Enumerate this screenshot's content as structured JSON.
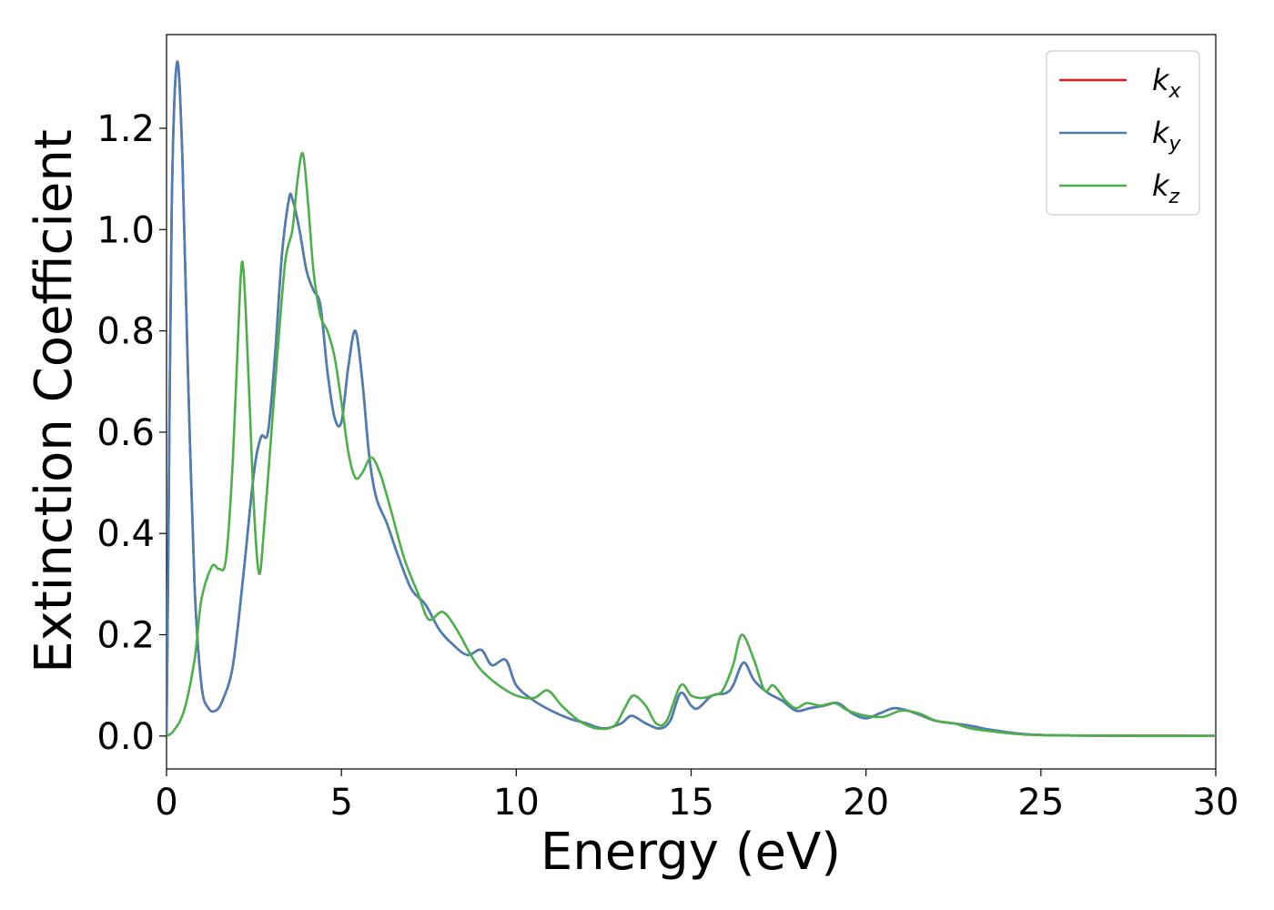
{
  "chart_data": {
    "type": "line",
    "title": "",
    "xlabel": "Energy (eV)",
    "ylabel": "Extinction Coefficient",
    "xlim": [
      0,
      30
    ],
    "ylim": [
      -0.065,
      1.385
    ],
    "xticks": [
      0,
      5,
      10,
      15,
      20,
      25,
      30
    ],
    "xtick_labels": [
      "0",
      "5",
      "10",
      "15",
      "20",
      "25",
      "30"
    ],
    "yticks": [
      0.0,
      0.2,
      0.4,
      0.6,
      0.8,
      1.0,
      1.2
    ],
    "ytick_labels": [
      "0.0",
      "0.2",
      "0.4",
      "0.6",
      "0.8",
      "1.0",
      "1.2"
    ],
    "grid": false,
    "legend_position": "top-right",
    "series": [
      {
        "name": "k_x",
        "label_main": "k",
        "label_sub": "x",
        "color": "#e41a1c",
        "x": [
          0,
          0.05,
          0.15,
          0.3,
          0.45,
          0.6,
          0.8,
          1.0,
          1.2,
          1.4,
          1.6,
          1.9,
          2.2,
          2.5,
          2.7,
          2.9,
          3.1,
          3.3,
          3.5,
          3.6,
          3.8,
          4.0,
          4.2,
          4.4,
          4.6,
          4.8,
          5.0,
          5.2,
          5.4,
          5.6,
          5.8,
          6.0,
          6.3,
          6.6,
          7.0,
          7.4,
          7.8,
          8.2,
          8.6,
          9.0,
          9.3,
          9.7,
          10.0,
          10.5,
          11.0,
          11.5,
          12.0,
          12.5,
          13.0,
          13.3,
          13.7,
          14.1,
          14.4,
          14.7,
          15.0,
          15.2,
          15.6,
          16.0,
          16.2,
          16.5,
          16.8,
          17.2,
          17.6,
          18.0,
          18.4,
          18.8,
          19.2,
          19.6,
          20.0,
          20.4,
          20.8,
          21.2,
          21.6,
          22.0,
          22.5,
          23.0,
          23.5,
          24.0,
          24.5,
          25.0,
          26.0,
          28.0,
          30.0
        ],
        "y": [
          0.0,
          0.35,
          1.05,
          1.33,
          1.15,
          0.75,
          0.3,
          0.1,
          0.055,
          0.05,
          0.07,
          0.14,
          0.32,
          0.52,
          0.59,
          0.6,
          0.75,
          0.95,
          1.06,
          1.06,
          1.0,
          0.92,
          0.88,
          0.85,
          0.72,
          0.63,
          0.62,
          0.73,
          0.8,
          0.7,
          0.55,
          0.47,
          0.42,
          0.36,
          0.29,
          0.26,
          0.21,
          0.18,
          0.16,
          0.17,
          0.14,
          0.15,
          0.1,
          0.07,
          0.05,
          0.035,
          0.025,
          0.015,
          0.025,
          0.04,
          0.025,
          0.015,
          0.03,
          0.085,
          0.06,
          0.055,
          0.08,
          0.085,
          0.1,
          0.145,
          0.11,
          0.085,
          0.07,
          0.05,
          0.055,
          0.06,
          0.065,
          0.045,
          0.035,
          0.045,
          0.055,
          0.05,
          0.04,
          0.03,
          0.025,
          0.02,
          0.013,
          0.008,
          0.004,
          0.002,
          0.001,
          0.0005,
          0.0003
        ]
      },
      {
        "name": "k_y",
        "label_main": "k",
        "label_sub": "y",
        "color": "#4a7fb5",
        "x": [
          0,
          0.05,
          0.15,
          0.3,
          0.45,
          0.6,
          0.8,
          1.0,
          1.2,
          1.4,
          1.6,
          1.9,
          2.2,
          2.5,
          2.7,
          2.9,
          3.1,
          3.3,
          3.5,
          3.6,
          3.8,
          4.0,
          4.2,
          4.4,
          4.6,
          4.8,
          5.0,
          5.2,
          5.4,
          5.6,
          5.8,
          6.0,
          6.3,
          6.6,
          7.0,
          7.4,
          7.8,
          8.2,
          8.6,
          9.0,
          9.3,
          9.7,
          10.0,
          10.5,
          11.0,
          11.5,
          12.0,
          12.5,
          13.0,
          13.3,
          13.7,
          14.1,
          14.4,
          14.7,
          15.0,
          15.2,
          15.6,
          16.0,
          16.2,
          16.5,
          16.8,
          17.2,
          17.6,
          18.0,
          18.4,
          18.8,
          19.2,
          19.6,
          20.0,
          20.4,
          20.8,
          21.2,
          21.6,
          22.0,
          22.5,
          23.0,
          23.5,
          24.0,
          24.5,
          25.0,
          26.0,
          28.0,
          30.0
        ],
        "y": [
          0.0,
          0.35,
          1.05,
          1.33,
          1.15,
          0.75,
          0.3,
          0.1,
          0.055,
          0.05,
          0.07,
          0.14,
          0.32,
          0.52,
          0.59,
          0.6,
          0.75,
          0.95,
          1.06,
          1.06,
          1.0,
          0.92,
          0.88,
          0.85,
          0.72,
          0.63,
          0.62,
          0.73,
          0.8,
          0.7,
          0.55,
          0.47,
          0.42,
          0.36,
          0.29,
          0.26,
          0.21,
          0.18,
          0.16,
          0.17,
          0.14,
          0.15,
          0.1,
          0.07,
          0.05,
          0.035,
          0.025,
          0.015,
          0.025,
          0.04,
          0.025,
          0.015,
          0.03,
          0.085,
          0.06,
          0.055,
          0.08,
          0.085,
          0.1,
          0.145,
          0.11,
          0.085,
          0.07,
          0.05,
          0.055,
          0.06,
          0.065,
          0.045,
          0.035,
          0.045,
          0.055,
          0.05,
          0.04,
          0.03,
          0.025,
          0.02,
          0.013,
          0.008,
          0.004,
          0.002,
          0.001,
          0.0005,
          0.0003
        ]
      },
      {
        "name": "k_z",
        "label_main": "k",
        "label_sub": "z",
        "color": "#4daf4a",
        "x": [
          0,
          0.2,
          0.5,
          0.8,
          1.0,
          1.3,
          1.5,
          1.7,
          1.9,
          2.1,
          2.2,
          2.35,
          2.5,
          2.65,
          2.8,
          3.0,
          3.2,
          3.4,
          3.6,
          3.75,
          3.9,
          4.05,
          4.2,
          4.4,
          4.6,
          4.8,
          5.0,
          5.2,
          5.4,
          5.6,
          5.85,
          6.1,
          6.4,
          6.8,
          7.2,
          7.5,
          7.9,
          8.3,
          8.7,
          9.0,
          9.5,
          10.0,
          10.5,
          10.9,
          11.3,
          11.8,
          12.3,
          12.8,
          13.1,
          13.35,
          13.7,
          14.0,
          14.3,
          14.7,
          15.0,
          15.3,
          15.6,
          15.9,
          16.2,
          16.45,
          16.8,
          17.1,
          17.35,
          17.7,
          18.0,
          18.3,
          18.7,
          19.1,
          19.5,
          20.0,
          20.5,
          21.0,
          21.5,
          22.0,
          22.5,
          23.0,
          23.5,
          24.0,
          24.5,
          25.0,
          26.0,
          28.0,
          30.0
        ],
        "y": [
          0.0,
          0.01,
          0.05,
          0.15,
          0.27,
          0.335,
          0.33,
          0.35,
          0.55,
          0.88,
          0.92,
          0.7,
          0.45,
          0.32,
          0.42,
          0.6,
          0.78,
          0.94,
          1.0,
          1.1,
          1.15,
          1.05,
          0.92,
          0.83,
          0.8,
          0.75,
          0.66,
          0.56,
          0.51,
          0.52,
          0.55,
          0.52,
          0.45,
          0.35,
          0.28,
          0.23,
          0.245,
          0.21,
          0.16,
          0.13,
          0.1,
          0.08,
          0.075,
          0.09,
          0.06,
          0.03,
          0.015,
          0.02,
          0.055,
          0.08,
          0.06,
          0.025,
          0.03,
          0.1,
          0.08,
          0.075,
          0.08,
          0.09,
          0.14,
          0.2,
          0.15,
          0.09,
          0.1,
          0.07,
          0.055,
          0.065,
          0.06,
          0.065,
          0.05,
          0.04,
          0.038,
          0.05,
          0.045,
          0.03,
          0.025,
          0.015,
          0.01,
          0.006,
          0.003,
          0.002,
          0.001,
          0.0005,
          0.0003
        ]
      }
    ]
  }
}
